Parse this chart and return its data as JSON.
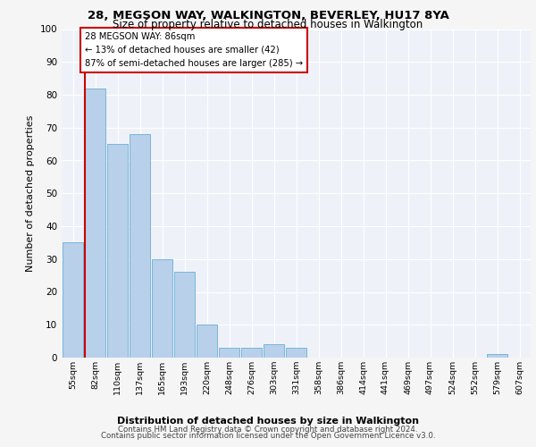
{
  "title1": "28, MEGSON WAY, WALKINGTON, BEVERLEY, HU17 8YA",
  "title2": "Size of property relative to detached houses in Walkington",
  "xlabel": "Distribution of detached houses by size in Walkington",
  "ylabel": "Number of detached properties",
  "categories": [
    "55sqm",
    "82sqm",
    "110sqm",
    "137sqm",
    "165sqm",
    "193sqm",
    "220sqm",
    "248sqm",
    "276sqm",
    "303sqm",
    "331sqm",
    "358sqm",
    "386sqm",
    "414sqm",
    "441sqm",
    "469sqm",
    "497sqm",
    "524sqm",
    "552sqm",
    "579sqm",
    "607sqm"
  ],
  "values": [
    35,
    82,
    65,
    68,
    30,
    26,
    10,
    3,
    3,
    4,
    3,
    0,
    0,
    0,
    0,
    0,
    0,
    0,
    0,
    1,
    0
  ],
  "bar_color": "#b8d0ea",
  "bar_edge_color": "#6baed6",
  "annotation_title": "28 MEGSON WAY: 86sqm",
  "annotation_line1": "← 13% of detached houses are smaller (42)",
  "annotation_line2": "87% of semi-detached houses are larger (285) →",
  "vline_color": "#cc0000",
  "box_edge_color": "#cc0000",
  "ylim": [
    0,
    100
  ],
  "yticks": [
    0,
    10,
    20,
    30,
    40,
    50,
    60,
    70,
    80,
    90,
    100
  ],
  "background_color": "#eef2f8",
  "grid_color": "#ffffff",
  "fig_background": "#f5f5f5",
  "footer1": "Contains HM Land Registry data © Crown copyright and database right 2024.",
  "footer2": "Contains public sector information licensed under the Open Government Licence v3.0."
}
